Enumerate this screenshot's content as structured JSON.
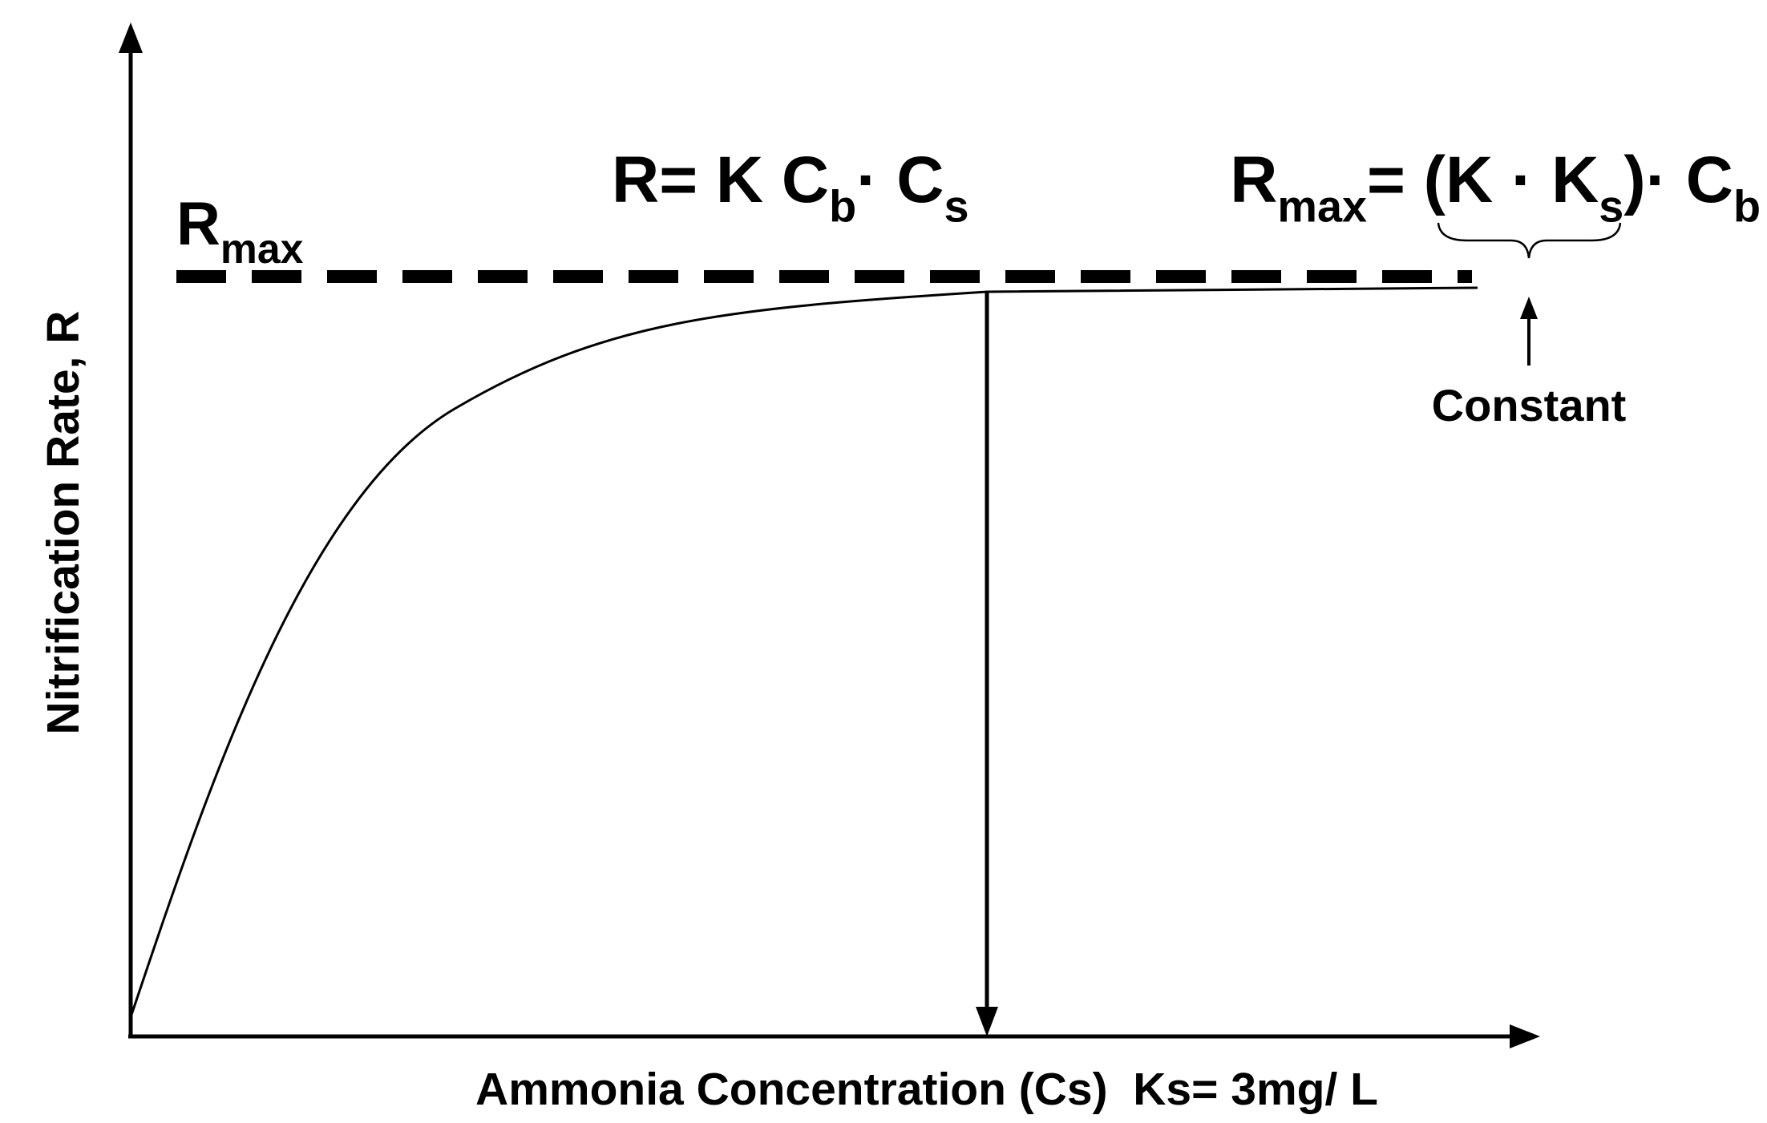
{
  "y_axis_label": "Nitrification Rate, R",
  "x_axis_label": "Ammonia Concentration (Cs)  Ks= 3mg/ L",
  "rmax_label": [
    {
      "text": "R",
      "sub": false
    },
    {
      "text": "max",
      "sub": true
    }
  ],
  "rate_equation": [
    {
      "text": "R= K C",
      "sub": false
    },
    {
      "text": "b",
      "sub": true
    },
    {
      "text": "· C",
      "sub": false
    },
    {
      "text": "s",
      "sub": true
    }
  ],
  "rmax_equation": [
    {
      "text": "R",
      "sub": false
    },
    {
      "text": "max",
      "sub": true
    },
    {
      "text": "= (K · K",
      "sub": false
    },
    {
      "text": "s",
      "sub": true
    },
    {
      "text": ")· C",
      "sub": false
    },
    {
      "text": "b",
      "sub": true
    }
  ],
  "constant_label": "Constant"
}
